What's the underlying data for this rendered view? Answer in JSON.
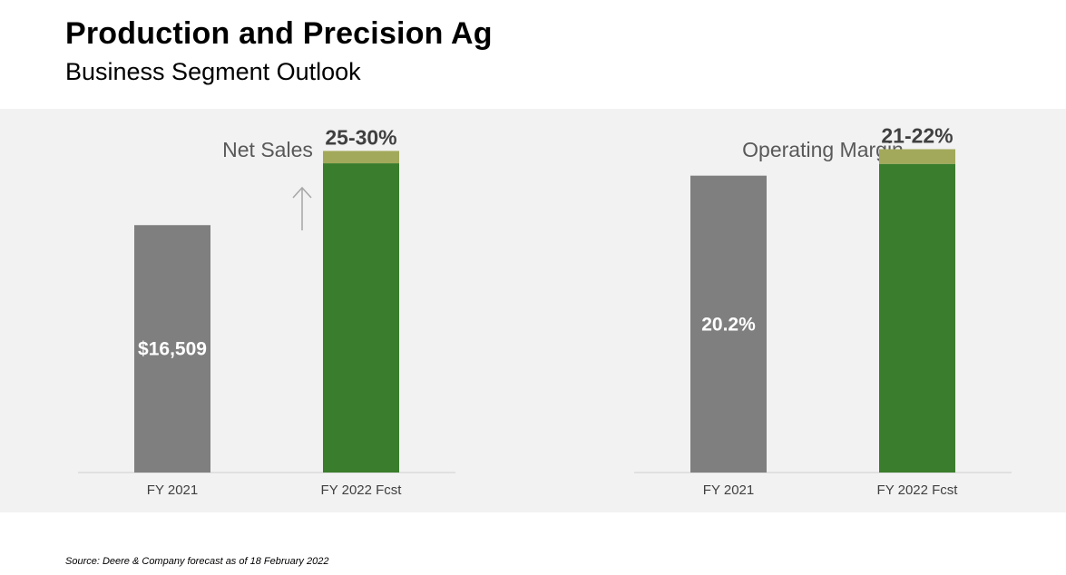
{
  "header": {
    "title": "Production and Precision Ag",
    "subtitle": "Business Segment Outlook"
  },
  "colors": {
    "panel_bg": "#f2f2f2",
    "actual_bar": "#7f7f7f",
    "forecast_bar": "#3a7d2c",
    "forecast_range": "#a3a95a",
    "axis_line": "#d9d9d9",
    "arrow": "#a6a6a6"
  },
  "chart_data": [
    {
      "type": "bar",
      "title": "Net Sales",
      "categories": [
        "FY 2021",
        "FY 2022 Fcst"
      ],
      "values": [
        16509,
        20636
      ],
      "range_upper": [
        null,
        21462
      ],
      "value_labels": [
        "$16,509",
        ""
      ],
      "forecast_label": "25-30%",
      "has_up_arrow": true,
      "ylim": [
        0,
        23000
      ],
      "xlabel": "",
      "ylabel": ""
    },
    {
      "type": "bar",
      "title": "Operating Margin",
      "categories": [
        "FY 2021",
        "FY 2022 Fcst"
      ],
      "values": [
        20.2,
        21.0
      ],
      "range_upper": [
        null,
        22.0
      ],
      "value_labels": [
        "20.2%",
        ""
      ],
      "forecast_label": "21-22%",
      "has_up_arrow": false,
      "ylim": [
        0,
        23.45
      ],
      "xlabel": "",
      "ylabel": ""
    }
  ],
  "footer": {
    "source": "Source: Deere & Company forecast as of 18 February 2022"
  }
}
